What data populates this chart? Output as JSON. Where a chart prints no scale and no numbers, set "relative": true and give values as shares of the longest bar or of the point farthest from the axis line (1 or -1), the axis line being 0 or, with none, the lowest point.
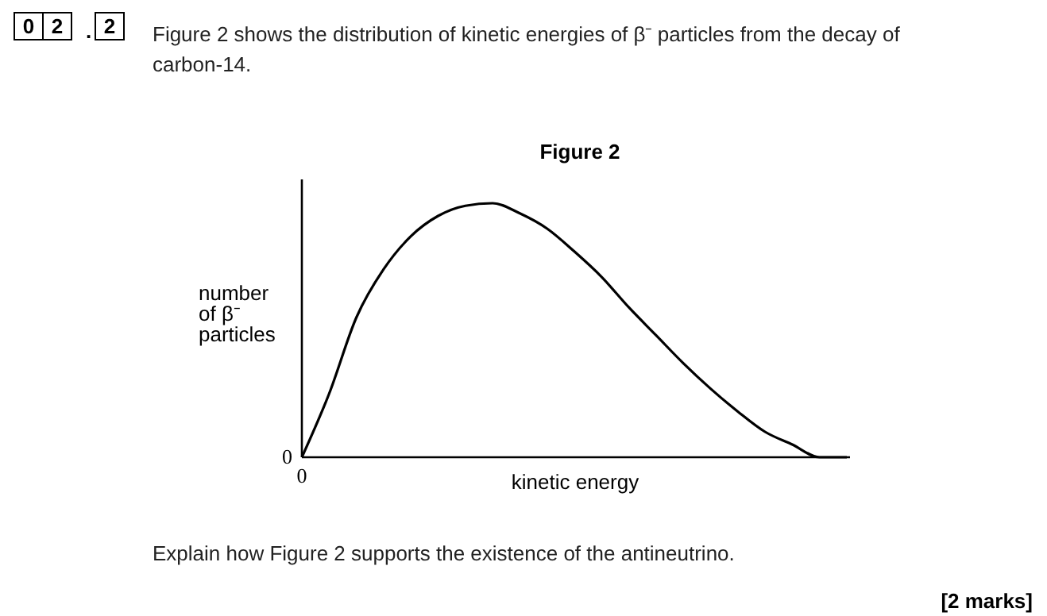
{
  "chart_data": {
    "type": "line",
    "relative": true,
    "title": "Figure 2",
    "xlabel": "kinetic energy",
    "ylabel": "number of β⁻ particles",
    "categories": [
      null,
      null,
      null,
      null,
      null,
      null,
      null,
      null,
      null,
      null,
      null,
      null,
      null,
      null,
      null,
      null,
      null,
      null,
      null,
      null,
      null
    ],
    "series": [
      {
        "color": "#000000",
        "values": [
          0,
          0.25,
          0.55,
          0.74,
          0.87,
          0.95,
          0.99,
          1,
          0.96,
          0.9,
          0.81,
          0.71,
          0.59,
          0.48,
          0.37,
          0.27,
          0.18,
          0.1,
          0.05,
          0,
          0
        ]
      }
    ],
    "marker": "none",
    "line_style": "solid",
    "annotations": [
      "0",
      "2",
      ".",
      "2",
      "Figure 2 shows the distribution of kinetic energies of β⁻ particles from the decay of carbon-14.",
      "0",
      "0",
      "Explain how Figure 2 supports the existence of the antineutrino.",
      "[2 marks]"
    ]
  }
}
